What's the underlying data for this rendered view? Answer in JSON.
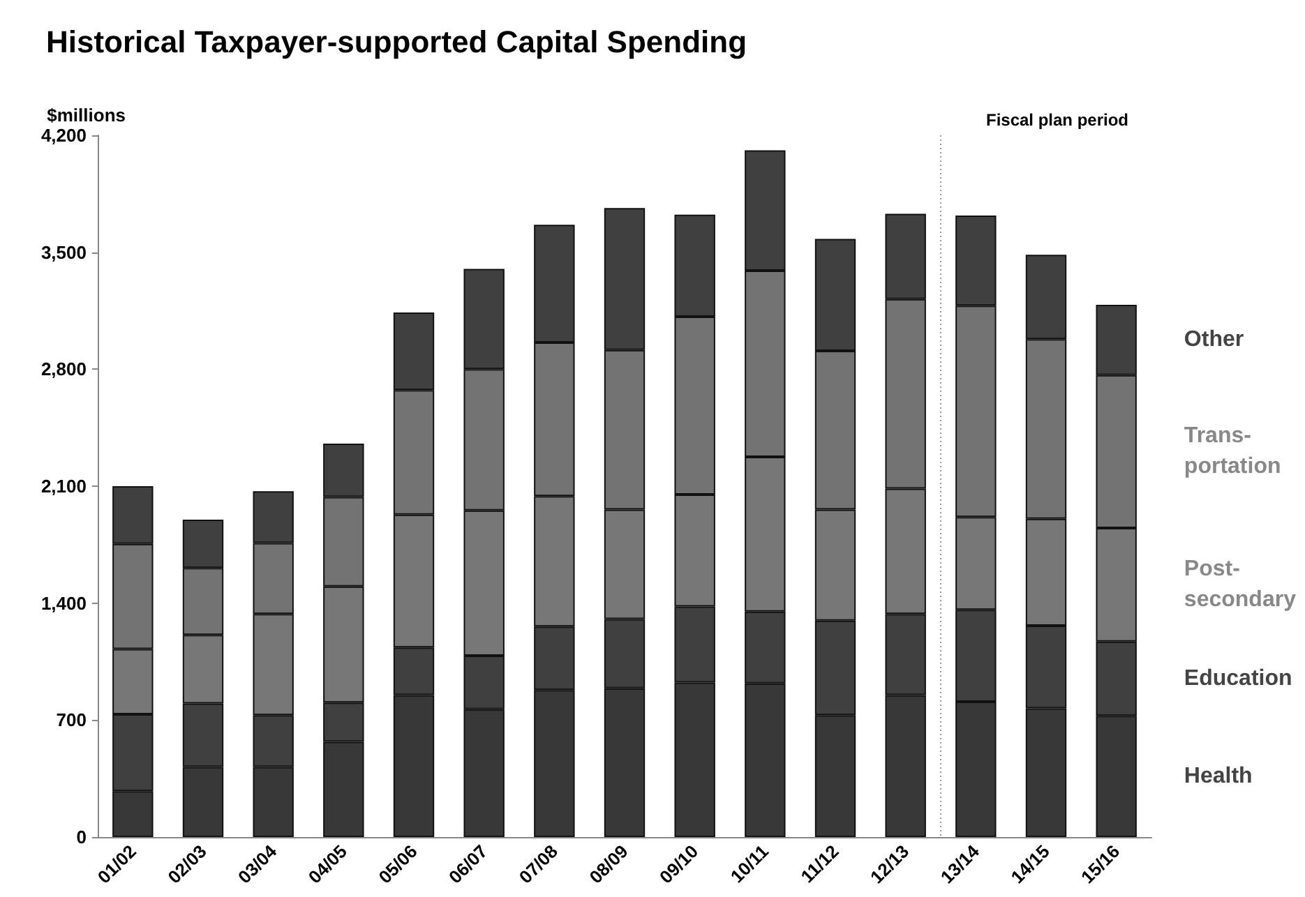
{
  "chart_data": {
    "type": "bar",
    "title": "Historical Taxpayer-supported Capital Spending",
    "ylabel": "$millions",
    "categories": [
      "01/02",
      "02/03",
      "03/04",
      "04/05",
      "05/06",
      "06/07",
      "07/08",
      "08/09",
      "09/10",
      "10/11",
      "11/12",
      "12/13",
      "13/14",
      "14/15",
      "15/16"
    ],
    "stacked": true,
    "series": [
      {
        "name": "Health",
        "color": "#383838",
        "values": [
          275,
          420,
          420,
          570,
          850,
          765,
          880,
          890,
          925,
          920,
          730,
          850,
          810,
          770,
          725
        ]
      },
      {
        "name": "Education",
        "color": "#404040",
        "values": [
          460,
          380,
          310,
          235,
          285,
          320,
          380,
          415,
          455,
          430,
          565,
          485,
          550,
          495,
          445
        ]
      },
      {
        "name": "Post-\nsecondary",
        "color": "#777777",
        "values": [
          390,
          410,
          605,
          695,
          795,
          870,
          780,
          655,
          670,
          925,
          665,
          750,
          555,
          640,
          680
        ]
      },
      {
        "name": "Trans-\nportation",
        "color": "#737373",
        "values": [
          630,
          400,
          425,
          535,
          745,
          845,
          920,
          955,
          1065,
          1115,
          950,
          1135,
          1265,
          1075,
          915
        ]
      },
      {
        "name": "Other",
        "color": "#404040",
        "values": [
          345,
          290,
          310,
          320,
          465,
          600,
          705,
          850,
          610,
          720,
          670,
          510,
          540,
          505,
          420
        ]
      }
    ],
    "ylim": [
      0,
      4200
    ],
    "yticks": [
      0,
      {
        "value": 700,
        "label": "700"
      },
      {
        "value": 1400,
        "label": "1,400"
      },
      {
        "value": 2100,
        "label": "2,100"
      },
      {
        "value": 2800,
        "label": "2,800"
      },
      {
        "value": 3500,
        "label": "3,500"
      },
      {
        "value": 4200,
        "label": "4,200"
      }
    ],
    "ref_lines": [
      {
        "axis": "x",
        "value": "13/14",
        "label": "Fiscal plan period",
        "color": "#999999",
        "line_style": "dotted"
      }
    ],
    "grid": false
  }
}
